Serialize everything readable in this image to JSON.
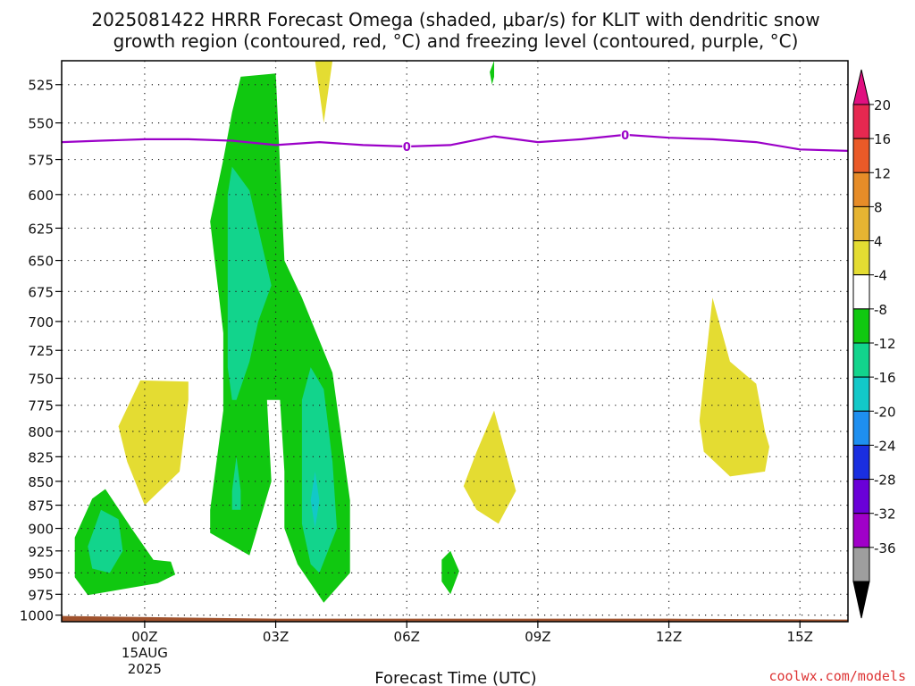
{
  "chart_data": {
    "type": "heatmap",
    "title_line1": "2025081422 HRRR Forecast Omega (shaded, μbar/s) for KLIT with dendritic snow",
    "title_line2": "growth region (contoured, red, °C) and freezing level (contoured, purple, °C)",
    "xlabel": "Forecast Time (UTC)",
    "ylabel": "",
    "y_scale": "log-pressure (hPa), inverted",
    "ylim": [
      510,
      1008
    ],
    "xlim_hours": [
      -1.9,
      16.1
    ],
    "x_ticks": [
      {
        "hour": 0,
        "label": "00Z",
        "sub1": "15AUG",
        "sub2": "2025"
      },
      {
        "hour": 3,
        "label": "03Z"
      },
      {
        "hour": 6,
        "label": "06Z"
      },
      {
        "hour": 9,
        "label": "09Z"
      },
      {
        "hour": 12,
        "label": "12Z"
      },
      {
        "hour": 15,
        "label": "15Z"
      }
    ],
    "y_ticks": [
      525,
      550,
      575,
      600,
      625,
      650,
      675,
      700,
      725,
      750,
      775,
      800,
      825,
      850,
      875,
      900,
      925,
      950,
      975,
      1000
    ],
    "grid": "dotted",
    "colorbar": {
      "position": "right",
      "colors": [
        "#000000",
        "#9e9e9e",
        "#a000c8",
        "#6a00d8",
        "#1a2ee0",
        "#1e8ff0",
        "#12c8c8",
        "#12d48c",
        "#10c810",
        "#ffffff",
        "#e4dc32",
        "#e6b432",
        "#e68c28",
        "#ea5a28",
        "#e62850",
        "#e01080"
      ],
      "tick_labels": [
        "-36",
        "-32",
        "-28",
        "-24",
        "-20",
        "-16",
        "-12",
        "-8",
        "-4",
        "4",
        "8",
        "12",
        "16",
        "20"
      ]
    },
    "freezing_level": {
      "label": "0",
      "color": "#9b00c8",
      "points": [
        [
          -1.9,
          563
        ],
        [
          -1,
          562
        ],
        [
          0,
          561
        ],
        [
          1,
          561
        ],
        [
          2,
          562
        ],
        [
          3,
          565
        ],
        [
          4,
          563
        ],
        [
          5,
          565
        ],
        [
          6,
          566
        ],
        [
          7,
          565
        ],
        [
          8,
          559
        ],
        [
          9,
          563
        ],
        [
          10,
          561
        ],
        [
          11,
          558
        ],
        [
          12,
          560
        ],
        [
          13,
          561
        ],
        [
          14,
          563
        ],
        [
          15,
          568
        ],
        [
          16.1,
          569
        ]
      ],
      "label_hours": [
        6,
        11
      ]
    },
    "ground": {
      "color": "#a0522d",
      "pressure": 1000
    },
    "omega_regions": [
      {
        "level": -4,
        "color": "#10c810",
        "points": [
          [
            -1.6,
            910
          ],
          [
            -1.2,
            868
          ],
          [
            -0.9,
            858
          ],
          [
            -0.3,
            900
          ],
          [
            0.2,
            935
          ],
          [
            0.6,
            937
          ],
          [
            0.7,
            952
          ],
          [
            0.3,
            962
          ],
          [
            -1.3,
            976
          ],
          [
            -1.6,
            955
          ]
        ]
      },
      {
        "level": -8,
        "color": "#12d48c",
        "points": [
          [
            -1.3,
            920
          ],
          [
            -1.0,
            880
          ],
          [
            -0.6,
            890
          ],
          [
            -0.5,
            925
          ],
          [
            -0.8,
            950
          ],
          [
            -1.2,
            945
          ]
        ]
      },
      {
        "level": -4,
        "color": "#10c810",
        "points": [
          [
            1.8,
            575
          ],
          [
            2.0,
            543
          ],
          [
            2.2,
            520
          ],
          [
            3.0,
            518
          ],
          [
            3.2,
            650
          ],
          [
            3.6,
            680
          ],
          [
            4.3,
            745
          ],
          [
            4.7,
            870
          ],
          [
            4.7,
            950
          ],
          [
            4.1,
            985
          ],
          [
            3.5,
            940
          ],
          [
            3.2,
            900
          ],
          [
            3.2,
            840
          ],
          [
            3.1,
            770
          ],
          [
            2.8,
            770
          ],
          [
            2.9,
            850
          ],
          [
            2.4,
            930
          ],
          [
            1.5,
            905
          ],
          [
            1.5,
            880
          ],
          [
            1.8,
            780
          ],
          [
            1.8,
            710
          ],
          [
            1.5,
            620
          ]
        ]
      },
      {
        "level": -8,
        "color": "#12d48c",
        "points": [
          [
            1.9,
            600
          ],
          [
            2.0,
            580
          ],
          [
            2.4,
            597
          ],
          [
            2.9,
            670
          ],
          [
            2.6,
            700
          ],
          [
            2.4,
            735
          ],
          [
            2.1,
            770
          ],
          [
            2.0,
            770
          ],
          [
            1.9,
            740
          ],
          [
            1.9,
            660
          ]
        ]
      },
      {
        "level": -8,
        "color": "#12d48c",
        "points": [
          [
            2.0,
            860
          ],
          [
            2.1,
            825
          ],
          [
            2.2,
            860
          ],
          [
            2.2,
            880
          ],
          [
            2.0,
            880
          ]
        ]
      },
      {
        "level": -8,
        "color": "#12d48c",
        "points": [
          [
            3.6,
            770
          ],
          [
            3.8,
            740
          ],
          [
            4.1,
            760
          ],
          [
            4.3,
            830
          ],
          [
            4.4,
            900
          ],
          [
            4.0,
            950
          ],
          [
            3.8,
            940
          ],
          [
            3.6,
            895
          ],
          [
            3.6,
            830
          ]
        ]
      },
      {
        "level": -12,
        "color": "#12c8c8",
        "points": [
          [
            3.8,
            870
          ],
          [
            3.9,
            840
          ],
          [
            4.0,
            870
          ],
          [
            3.9,
            900
          ]
        ]
      },
      {
        "level": -4,
        "color": "#10c810",
        "points": [
          [
            6.8,
            935
          ],
          [
            7.0,
            925
          ],
          [
            7.2,
            948
          ],
          [
            7.0,
            975
          ],
          [
            6.8,
            960
          ]
        ]
      },
      {
        "level": -4,
        "color": "#10c810",
        "points": [
          [
            7.9,
            517
          ],
          [
            8.0,
            510
          ],
          [
            8.0,
            520
          ],
          [
            7.95,
            525
          ]
        ]
      },
      {
        "level": 4,
        "color": "#e4dc32",
        "points": [
          [
            -0.6,
            795
          ],
          [
            -0.1,
            752
          ],
          [
            1.0,
            753
          ],
          [
            1.0,
            770
          ],
          [
            0.8,
            840
          ],
          [
            0.0,
            875
          ],
          [
            -0.4,
            830
          ]
        ]
      },
      {
        "level": 4,
        "color": "#e4dc32",
        "points": [
          [
            3.9,
            510
          ],
          [
            4.3,
            510
          ],
          [
            4.1,
            550
          ]
        ]
      },
      {
        "level": 4,
        "color": "#e4dc32",
        "points": [
          [
            7.3,
            855
          ],
          [
            7.6,
            820
          ],
          [
            8.0,
            780
          ],
          [
            8.5,
            860
          ],
          [
            8.1,
            895
          ],
          [
            7.6,
            880
          ]
        ]
      },
      {
        "level": 4,
        "color": "#e4dc32",
        "points": [
          [
            13.0,
            680
          ],
          [
            13.4,
            735
          ],
          [
            14.0,
            755
          ],
          [
            14.2,
            800
          ],
          [
            14.3,
            815
          ],
          [
            14.2,
            840
          ],
          [
            13.4,
            845
          ],
          [
            12.8,
            820
          ],
          [
            12.7,
            790
          ],
          [
            12.8,
            750
          ]
        ]
      }
    ]
  },
  "credit": "coolwx.com/models"
}
